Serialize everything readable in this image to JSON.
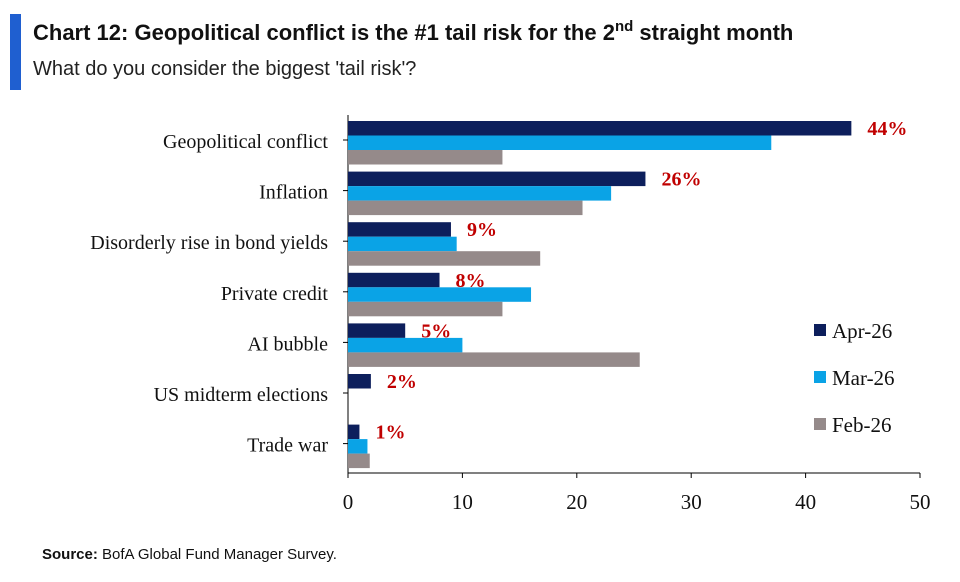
{
  "header": {
    "title": "Chart 12: Geopolitical conflict is the #1 tail risk for the 2",
    "title_sup": "nd",
    "title_tail": " straight month",
    "subtitle": "What do you consider the biggest 'tail risk'?"
  },
  "footer": {
    "source_label": "Source:",
    "source_text": " BofA Global Fund Manager Survey."
  },
  "colors": {
    "accent": "#1f5fd0",
    "apr": "#0d1f5c",
    "mar": "#0aa3e6",
    "feb": "#958a8a",
    "data_label": "#c00000"
  },
  "chart_data": {
    "type": "bar",
    "orientation": "horizontal",
    "categories": [
      "Geopolitical conflict",
      "Inflation",
      "Disorderly rise in bond yields",
      "Private credit",
      "AI bubble",
      "US midterm elections",
      "Trade war"
    ],
    "series": [
      {
        "name": "Apr-26",
        "color": "#0d1f5c",
        "values": [
          44,
          26,
          9,
          8,
          5,
          2,
          1
        ]
      },
      {
        "name": "Mar-26",
        "color": "#0aa3e6",
        "values": [
          37,
          23,
          9.5,
          16,
          10,
          0,
          1.7
        ]
      },
      {
        "name": "Feb-26",
        "color": "#958a8a",
        "values": [
          13.5,
          20.5,
          16.8,
          13.5,
          25.5,
          0,
          1.9
        ]
      }
    ],
    "data_labels": [
      "44%",
      "26%",
      "9%",
      "8%",
      "5%",
      "2%",
      "1%"
    ],
    "xlim": [
      0,
      50
    ],
    "xticks": [
      0,
      10,
      20,
      30,
      40,
      50
    ],
    "legend_position": "right",
    "grid": false
  }
}
